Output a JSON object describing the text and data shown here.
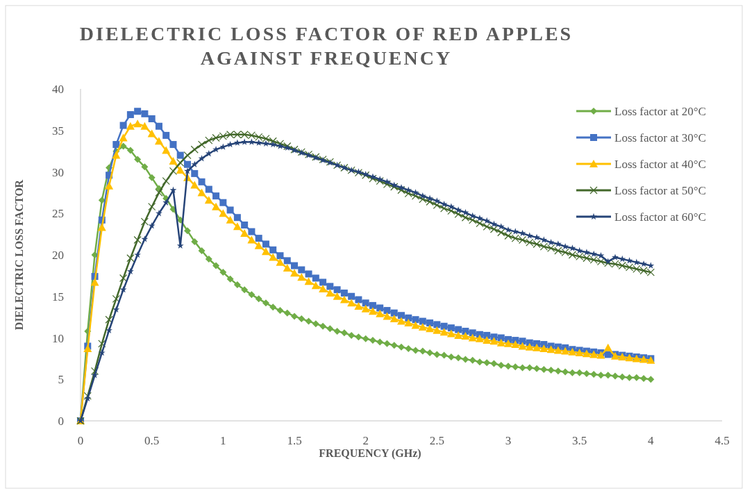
{
  "chart_data": {
    "type": "line",
    "title": "DIELECTRIC LOSS FACTOR OF RED APPLES AGAINST FREQUENCY",
    "xlabel": "FREQUENCY (GHz)",
    "ylabel": "DIELECTRIC LOSS FACTOR",
    "x": [
      0,
      0.05,
      0.1,
      0.15,
      0.2,
      0.25,
      0.3,
      0.35,
      0.4,
      0.45,
      0.5,
      0.55,
      0.6,
      0.65,
      0.7,
      0.75,
      0.8,
      0.85,
      0.9,
      0.95,
      1,
      1.05,
      1.1,
      1.15,
      1.2,
      1.25,
      1.3,
      1.35,
      1.4,
      1.45,
      1.5,
      1.55,
      1.6,
      1.65,
      1.7,
      1.75,
      1.8,
      1.85,
      1.9,
      1.95,
      2,
      2.05,
      2.1,
      2.15,
      2.2,
      2.25,
      2.3,
      2.35,
      2.4,
      2.45,
      2.5,
      2.55,
      2.6,
      2.65,
      2.7,
      2.75,
      2.8,
      2.85,
      2.9,
      2.95,
      3,
      3.05,
      3.1,
      3.15,
      3.2,
      3.25,
      3.3,
      3.35,
      3.4,
      3.45,
      3.5,
      3.55,
      3.6,
      3.65,
      3.7,
      3.75,
      3.8,
      3.85,
      3.9,
      3.95,
      4
    ],
    "series": [
      {
        "name": "Loss factor at 20°C",
        "color": "#70ad47",
        "marker": "diamond",
        "values": [
          0,
          10.8,
          20.0,
          26.6,
          30.5,
          32.5,
          33.1,
          32.6,
          31.5,
          30.6,
          29.3,
          28.0,
          26.8,
          25.5,
          24.2,
          22.9,
          21.6,
          20.5,
          19.5,
          18.7,
          17.9,
          17.1,
          16.4,
          15.8,
          15.2,
          14.7,
          14.2,
          13.7,
          13.3,
          13.0,
          12.6,
          12.3,
          12.0,
          11.7,
          11.4,
          11.1,
          10.8,
          10.6,
          10.3,
          10.1,
          9.9,
          9.7,
          9.5,
          9.3,
          9.1,
          8.9,
          8.7,
          8.5,
          8.4,
          8.2,
          8.0,
          7.9,
          7.7,
          7.6,
          7.4,
          7.3,
          7.1,
          7.0,
          6.9,
          6.7,
          6.6,
          6.5,
          6.4,
          6.4,
          6.3,
          6.2,
          6.1,
          6.0,
          5.9,
          5.8,
          5.8,
          5.7,
          5.6,
          5.5,
          5.5,
          5.4,
          5.3,
          5.2,
          5.2,
          5.1,
          5.0
        ]
      },
      {
        "name": "Loss factor at 30°C",
        "color": "#4472c4",
        "marker": "square",
        "values": [
          0,
          9.0,
          17.4,
          24.2,
          29.6,
          33.3,
          35.6,
          36.9,
          37.3,
          37.0,
          36.4,
          35.5,
          34.4,
          33.3,
          32.0,
          30.9,
          29.8,
          28.8,
          27.9,
          27.1,
          26.3,
          25.4,
          24.5,
          23.6,
          22.8,
          22.0,
          21.3,
          20.6,
          19.9,
          19.3,
          18.7,
          18.2,
          17.7,
          17.2,
          16.7,
          16.2,
          15.8,
          15.4,
          15.0,
          14.6,
          14.2,
          13.9,
          13.6,
          13.3,
          13.0,
          12.7,
          12.4,
          12.2,
          12.0,
          11.8,
          11.6,
          11.4,
          11.2,
          11.0,
          10.8,
          10.6,
          10.4,
          10.3,
          10.1,
          10.0,
          9.8,
          9.7,
          9.6,
          9.4,
          9.3,
          9.2,
          9.0,
          8.9,
          8.8,
          8.6,
          8.5,
          8.4,
          8.3,
          8.2,
          8.0,
          8.0,
          7.9,
          7.8,
          7.7,
          7.6,
          7.5
        ]
      },
      {
        "name": "Loss factor at 40°C",
        "color": "#ffc000",
        "marker": "triangle",
        "values": [
          0,
          8.7,
          16.7,
          23.3,
          28.3,
          32.0,
          34.1,
          35.5,
          35.8,
          35.5,
          34.6,
          33.7,
          32.6,
          31.3,
          30.2,
          29.3,
          28.4,
          27.5,
          26.6,
          25.8,
          25.0,
          24.2,
          23.4,
          22.6,
          21.8,
          21.1,
          20.4,
          19.7,
          19.1,
          18.4,
          17.8,
          17.3,
          16.8,
          16.3,
          15.9,
          15.4,
          15.0,
          14.6,
          14.2,
          13.8,
          13.5,
          13.2,
          12.9,
          12.6,
          12.3,
          12.0,
          11.8,
          11.5,
          11.3,
          11.1,
          10.9,
          10.7,
          10.5,
          10.3,
          10.2,
          10.0,
          9.9,
          9.7,
          9.6,
          9.4,
          9.3,
          9.2,
          9.0,
          8.9,
          8.8,
          8.7,
          8.6,
          8.5,
          8.4,
          8.3,
          8.2,
          8.1,
          8.0,
          7.9,
          8.8,
          7.8,
          7.7,
          7.6,
          7.5,
          7.4,
          7.3
        ]
      },
      {
        "name": "Loss factor at 50°C",
        "color": "#43682b",
        "marker": "cross",
        "values": [
          0,
          3.0,
          6.0,
          9.3,
          12.2,
          14.7,
          17.2,
          19.6,
          21.8,
          24.0,
          25.8,
          27.5,
          28.9,
          30.1,
          31.1,
          32.0,
          32.7,
          33.3,
          33.8,
          34.1,
          34.3,
          34.5,
          34.5,
          34.5,
          34.4,
          34.2,
          34.0,
          33.7,
          33.4,
          33.1,
          32.7,
          32.4,
          32.1,
          31.8,
          31.5,
          31.2,
          30.8,
          30.5,
          30.2,
          29.9,
          29.6,
          29.2,
          28.9,
          28.5,
          28.2,
          27.8,
          27.4,
          27.1,
          26.7,
          26.4,
          26.0,
          25.6,
          25.3,
          24.9,
          24.5,
          24.2,
          23.8,
          23.4,
          23.1,
          22.7,
          22.3,
          22.0,
          21.8,
          21.5,
          21.3,
          21.0,
          20.8,
          20.5,
          20.3,
          20.0,
          19.8,
          19.6,
          19.4,
          19.2,
          19.0,
          18.9,
          18.7,
          18.5,
          18.3,
          18.1,
          17.9
        ]
      },
      {
        "name": "Loss factor at 60°C",
        "color": "#264478",
        "marker": "star",
        "values": [
          0,
          2.7,
          5.5,
          8.2,
          10.9,
          13.4,
          15.8,
          18.0,
          20.0,
          21.9,
          23.5,
          25.0,
          26.3,
          27.8,
          21.1,
          30.1,
          30.9,
          31.6,
          32.2,
          32.7,
          33.0,
          33.3,
          33.5,
          33.6,
          33.6,
          33.5,
          33.4,
          33.3,
          33.1,
          32.9,
          32.6,
          32.3,
          32.0,
          31.7,
          31.4,
          31.1,
          30.8,
          30.5,
          30.2,
          30.0,
          29.7,
          29.4,
          29.1,
          28.8,
          28.4,
          28.1,
          27.8,
          27.5,
          27.1,
          26.8,
          26.5,
          26.1,
          25.8,
          25.4,
          25.1,
          24.7,
          24.4,
          24.1,
          23.7,
          23.4,
          23.0,
          22.8,
          22.6,
          22.3,
          22.1,
          21.8,
          21.5,
          21.3,
          21.0,
          20.8,
          20.5,
          20.3,
          20.1,
          19.9,
          19.2,
          19.7,
          19.5,
          19.3,
          19.1,
          18.9,
          18.7
        ]
      }
    ],
    "xlim": [
      0,
      4.5
    ],
    "xticks": [
      0,
      0.5,
      1,
      1.5,
      2,
      2.5,
      3,
      3.5,
      4,
      4.5
    ],
    "ylim": [
      0,
      40
    ],
    "yticks": [
      0,
      5,
      10,
      15,
      20,
      25,
      30,
      35,
      40
    ],
    "legend": "top right"
  }
}
